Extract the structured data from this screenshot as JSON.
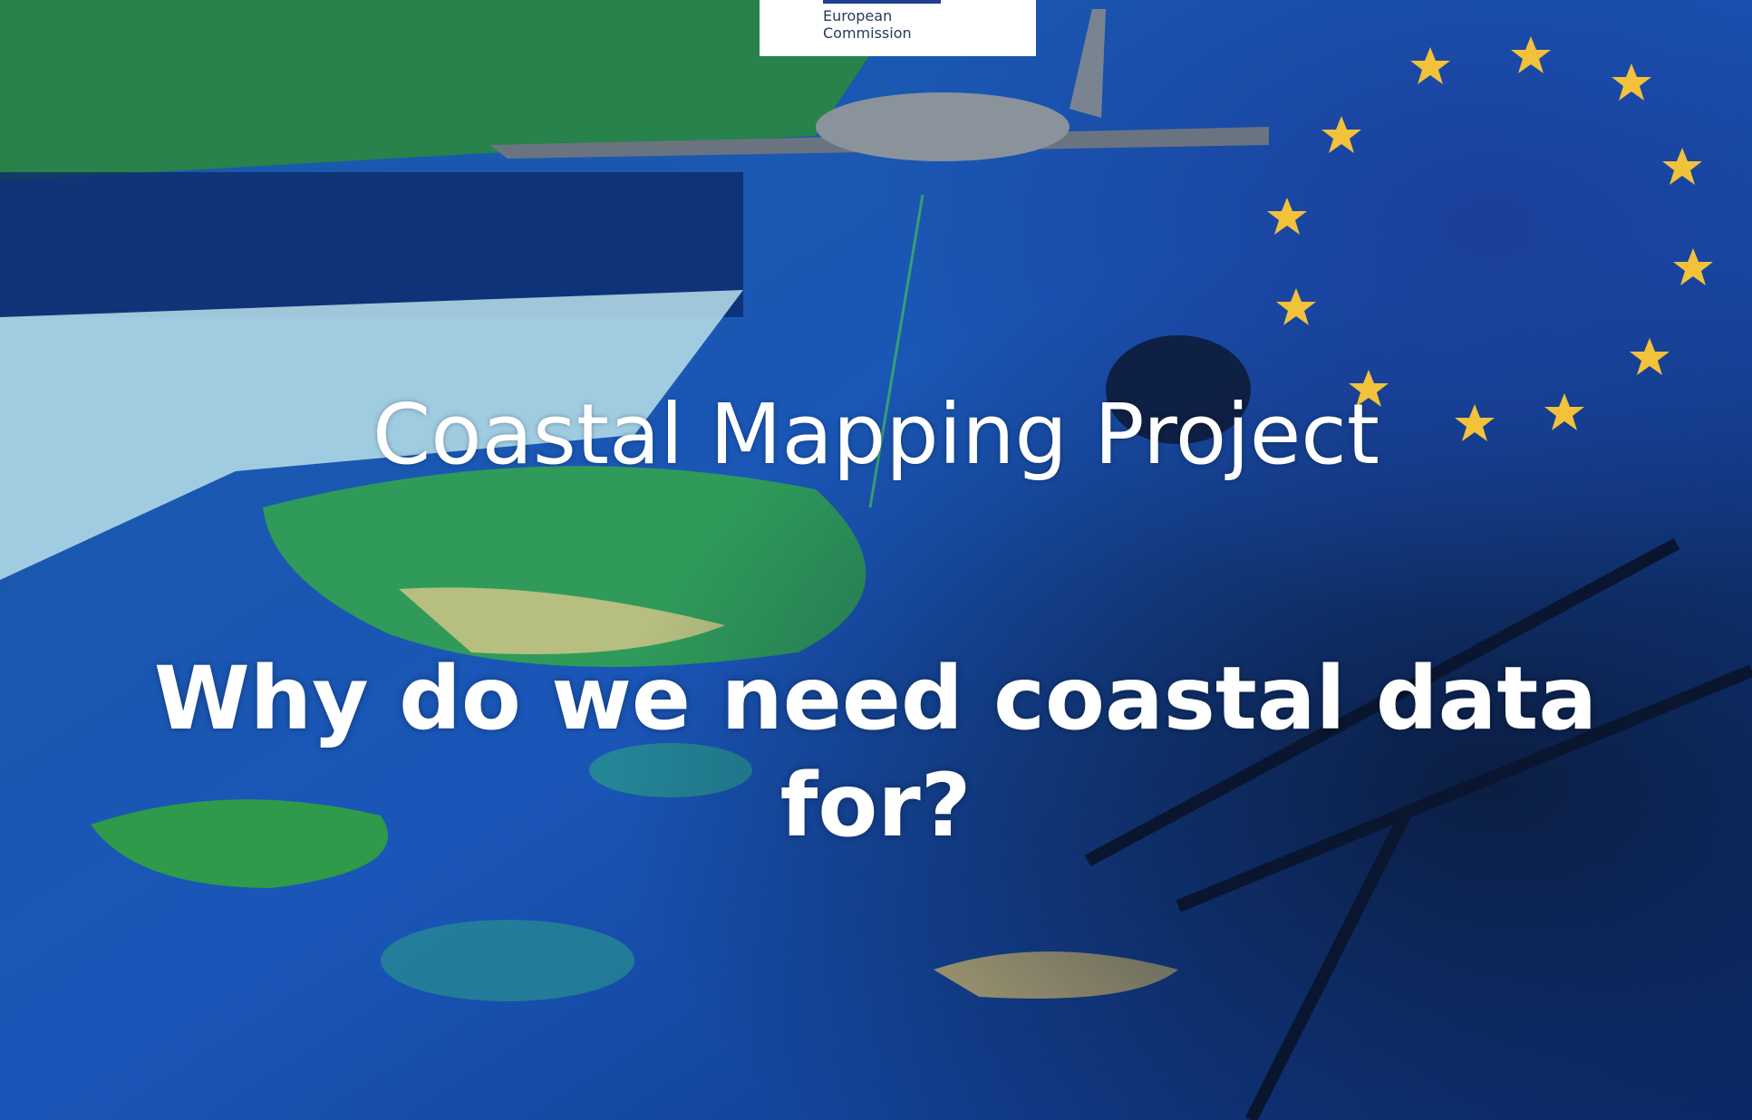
{
  "logo": {
    "line1": "European",
    "line2": "Commission"
  },
  "title": "Coastal Mapping Project",
  "subtitle": "Why do we need coastal data for?"
}
